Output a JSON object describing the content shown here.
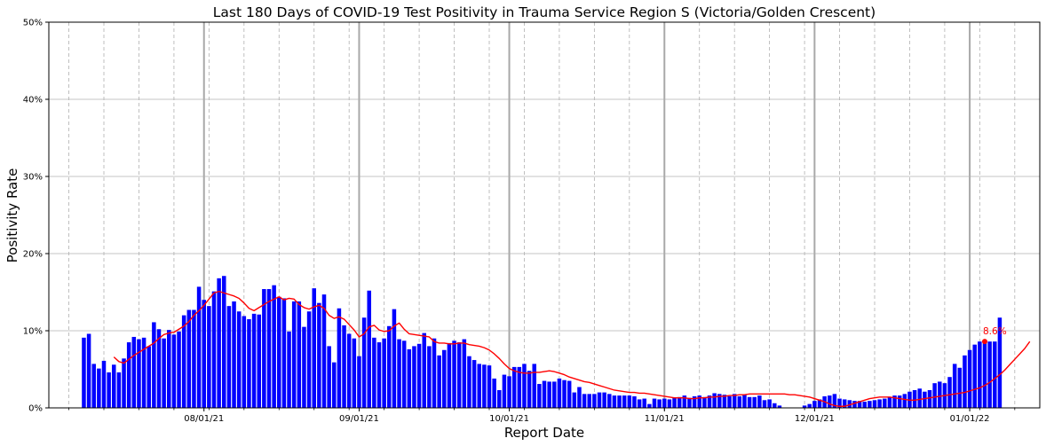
{
  "chart_data": {
    "type": "bar",
    "title": "Last 180 Days of COVID-19 Test Positivity in Trauma Service Region S (Victoria/Golden Crescent)",
    "xlabel": "Report Date",
    "ylabel": "Positivity Rate",
    "ylim": [
      0,
      50
    ],
    "yticks": [
      0,
      10,
      20,
      30,
      40,
      50
    ],
    "ytick_labels": [
      "0%",
      "10%",
      "20%",
      "30%",
      "40%",
      "50%"
    ],
    "xtick_labels": [
      "08/01/21",
      "09/01/21",
      "10/01/21",
      "11/01/21",
      "12/01/21",
      "01/01/22"
    ],
    "xtick_dates": [
      "2021-08-01",
      "2021-09-01",
      "2021-10-01",
      "2021-11-01",
      "2021-12-01",
      "2022-01-01"
    ],
    "xlim": [
      "2021-07-01",
      "2022-01-15"
    ],
    "grid": true,
    "bar_color": "#0000ff",
    "line_color": "#ff0000",
    "start_date": "2021-07-08",
    "values": [
      9.1,
      9.6,
      5.7,
      5.1,
      6.1,
      4.6,
      5.6,
      4.6,
      6.4,
      8.5,
      9.2,
      8.9,
      9.1,
      8.0,
      11.1,
      10.2,
      9.0,
      10.1,
      9.5,
      9.9,
      12.0,
      12.7,
      12.7,
      15.7,
      14.0,
      13.2,
      15.1,
      16.8,
      17.1,
      13.2,
      13.8,
      12.5,
      11.9,
      11.5,
      12.2,
      12.1,
      15.4,
      15.4,
      15.9,
      14.4,
      14.2,
      9.9,
      13.8,
      13.8,
      10.5,
      12.5,
      15.5,
      13.6,
      14.7,
      8.0,
      5.9,
      12.9,
      10.7,
      9.6,
      9.0,
      6.7,
      11.7,
      15.2,
      9.1,
      8.5,
      9.0,
      10.6,
      12.8,
      8.9,
      8.7,
      7.6,
      8.0,
      8.3,
      9.7,
      8.0,
      9.0,
      6.8,
      7.5,
      8.4,
      8.7,
      8.5,
      8.9,
      6.7,
      6.2,
      5.7,
      5.6,
      5.5,
      3.8,
      2.3,
      4.3,
      4.1,
      5.3,
      5.3,
      5.7,
      4.8,
      5.7,
      3.1,
      3.5,
      3.4,
      3.4,
      3.8,
      3.6,
      3.5,
      2.0,
      2.7,
      1.8,
      1.8,
      1.8,
      2.0,
      2.0,
      1.8,
      1.6,
      1.6,
      1.6,
      1.6,
      1.5,
      1.1,
      1.2,
      0.5,
      1.2,
      1.1,
      1.2,
      1.1,
      1.3,
      1.4,
      1.6,
      1.3,
      1.5,
      1.6,
      1.4,
      1.6,
      1.9,
      1.8,
      1.7,
      1.5,
      1.8,
      1.5,
      1.7,
      1.4,
      1.4,
      1.6,
      1.0,
      1.1,
      0.6,
      0.3,
      0.0,
      0.0,
      0.0,
      0.0,
      0.3,
      0.5,
      0.9,
      1.1,
      1.5,
      1.6,
      1.8,
      1.2,
      1.1,
      1.0,
      0.9,
      0.9,
      0.8,
      0.9,
      1.0,
      1.1,
      1.2,
      1.4,
      1.6,
      1.6,
      1.8,
      2.1,
      2.3,
      2.5,
      2.1,
      2.3,
      3.2,
      3.4,
      3.2,
      4.0,
      5.7,
      5.2,
      6.8,
      7.5,
      8.2,
      8.6,
      8.6,
      8.6,
      8.6,
      11.7
    ],
    "series": [
      {
        "type": "line",
        "start_date": "2021-07-14",
        "values": [
          6.6,
          6.0,
          5.8,
          6.3,
          6.8,
          7.2,
          7.6,
          8.0,
          8.4,
          9.0,
          9.5,
          9.7,
          9.8,
          10.2,
          10.6,
          11.2,
          12.0,
          12.6,
          13.3,
          14.1,
          14.9,
          15.1,
          14.9,
          14.7,
          14.5,
          14.2,
          13.6,
          12.9,
          12.6,
          13.0,
          13.4,
          13.8,
          14.1,
          14.4,
          14.0,
          14.2,
          14.1,
          13.4,
          13.0,
          12.8,
          13.1,
          13.3,
          12.9,
          12.0,
          11.6,
          11.8,
          11.5,
          10.8,
          10.1,
          9.2,
          9.6,
          10.5,
          10.7,
          10.1,
          9.9,
          10.0,
          10.6,
          11.0,
          10.2,
          9.6,
          9.5,
          9.4,
          9.3,
          9.2,
          8.6,
          8.4,
          8.4,
          8.3,
          8.3,
          8.4,
          8.4,
          8.2,
          8.1,
          8.0,
          7.8,
          7.5,
          7.0,
          6.4,
          5.7,
          5.1,
          4.8,
          4.6,
          4.5,
          4.5,
          4.6,
          4.6,
          4.7,
          4.8,
          4.7,
          4.5,
          4.3,
          4.0,
          3.8,
          3.6,
          3.4,
          3.3,
          3.1,
          2.9,
          2.7,
          2.5,
          2.3,
          2.2,
          2.1,
          2.0,
          2.0,
          1.9,
          1.9,
          1.8,
          1.7,
          1.6,
          1.5,
          1.4,
          1.3,
          1.3,
          1.3,
          1.2,
          1.2,
          1.3,
          1.3,
          1.4,
          1.4,
          1.5,
          1.5,
          1.6,
          1.6,
          1.7,
          1.7,
          1.8,
          1.8,
          1.8,
          1.8,
          1.8,
          1.8,
          1.8,
          1.8,
          1.7,
          1.7,
          1.6,
          1.5,
          1.4,
          1.2,
          1.0,
          0.8,
          0.5,
          0.3,
          0.2,
          0.2,
          0.4,
          0.6,
          0.8,
          1.0,
          1.2,
          1.3,
          1.4,
          1.4,
          1.4,
          1.3,
          1.2,
          1.1,
          1.0,
          1.0,
          1.1,
          1.2,
          1.3,
          1.4,
          1.5,
          1.6,
          1.7,
          1.8,
          1.9,
          2.0,
          2.2,
          2.4,
          2.6,
          2.9,
          3.3,
          3.8,
          4.3,
          4.9,
          5.6,
          6.3,
          7.0,
          7.7,
          8.6
        ]
      }
    ],
    "annotations": [
      {
        "text": "8.6%",
        "date": "2022-01-04",
        "y": 8.6,
        "color": "#ff0000"
      }
    ]
  }
}
